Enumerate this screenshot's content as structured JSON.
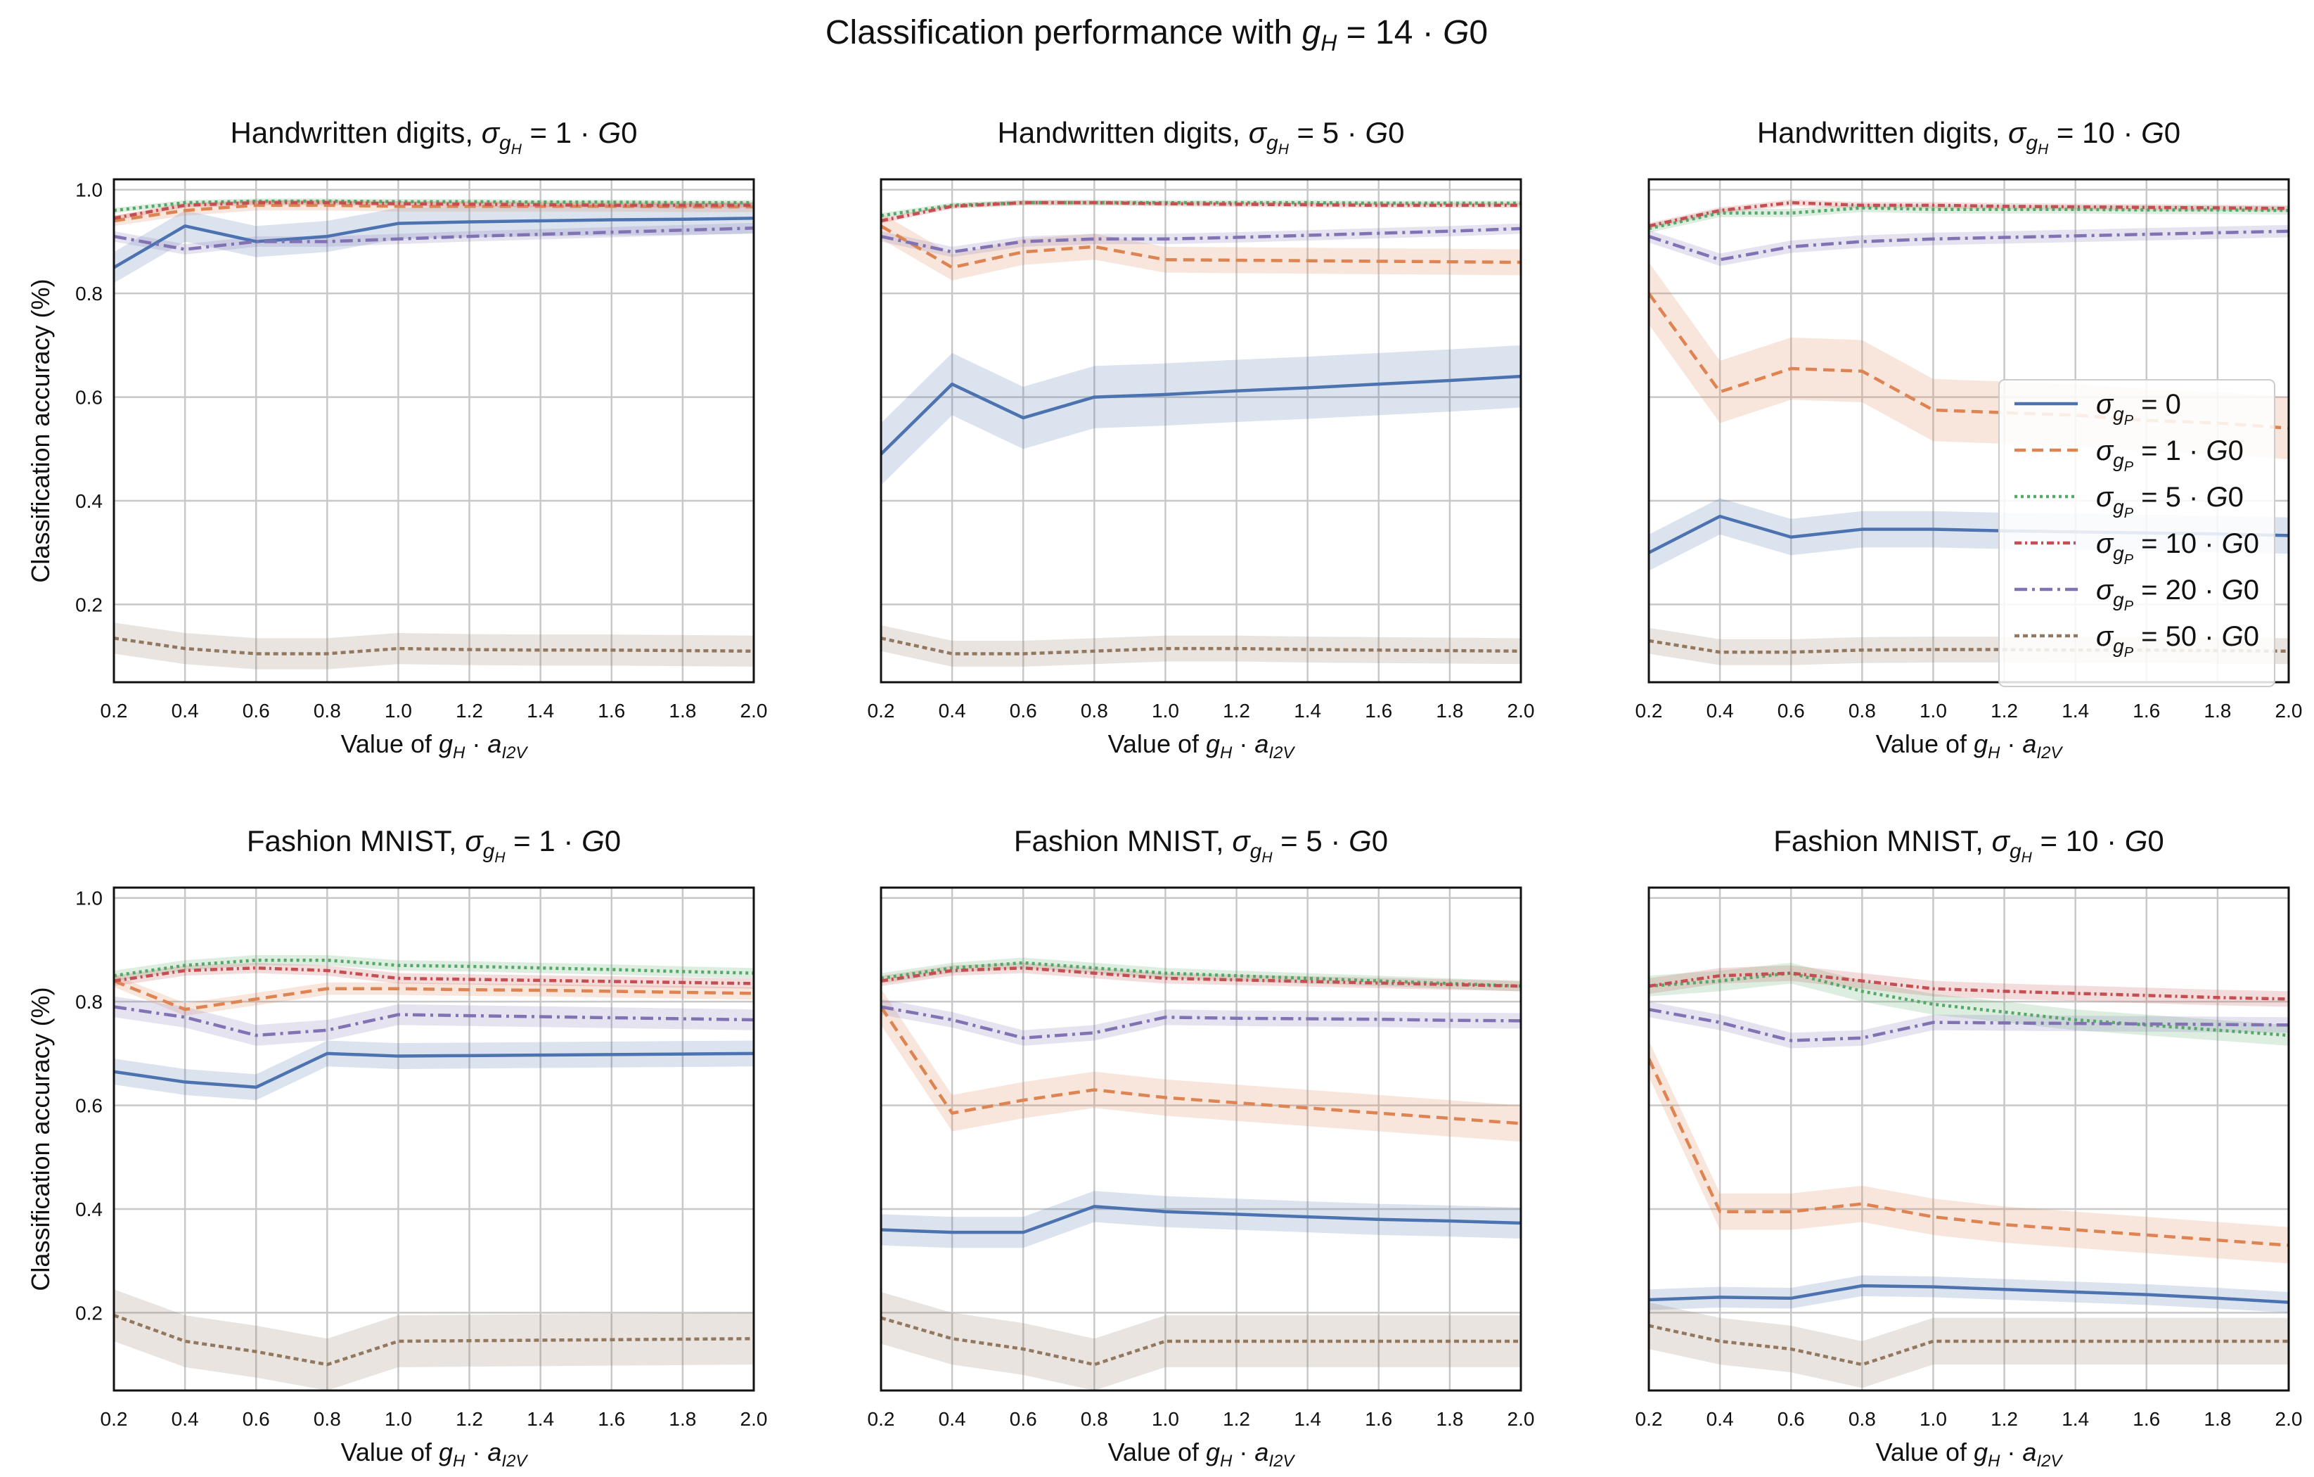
{
  "chart_data": {
    "type": "line",
    "suptitle": "Classification performance with g_H = 14 · G0",
    "xlabel": "Value of g_H · a_I2V",
    "ylabel": "Classification accuracy (%)",
    "x": [
      0.2,
      0.4,
      0.6,
      0.8,
      1.0,
      1.2,
      1.4,
      1.6,
      1.8,
      2.0
    ],
    "xticks": [
      "0.2",
      "0.4",
      "0.6",
      "0.8",
      "1.0",
      "1.2",
      "1.4",
      "1.6",
      "1.8",
      "2.0"
    ],
    "yticks": [
      "0.2",
      "0.4",
      "0.6",
      "0.8",
      "1.0"
    ],
    "ylim": [
      0.05,
      1.02
    ],
    "xlim": [
      0.2,
      2.0
    ],
    "grid": true,
    "legend": {
      "placement": "right of top-right panel",
      "entries": [
        "σ_gP = 0",
        "σ_gP = 1 · G0",
        "σ_gP = 5 · G0",
        "σ_gP = 10 · G0",
        "σ_gP = 20 · G0",
        "σ_gP = 50 · G0"
      ]
    },
    "series_styles": [
      {
        "name": "σ_gP = 0",
        "color": "#4c72b0",
        "dash": "solid"
      },
      {
        "name": "σ_gP = 1 · G0",
        "color": "#dd8452",
        "dash": "dashed"
      },
      {
        "name": "σ_gP = 5 · G0",
        "color": "#55a868",
        "dash": "dotted"
      },
      {
        "name": "σ_gP = 10 · G0",
        "color": "#c44e52",
        "dash": "dashdot-short"
      },
      {
        "name": "σ_gP = 20 · G0",
        "color": "#8172b3",
        "dash": "dashdot"
      },
      {
        "name": "σ_gP = 50 · G0",
        "color": "#937860",
        "dash": "dense-dash"
      }
    ],
    "panels": [
      {
        "title_main": "Handwritten digits,",
        "title_sigma": "1 · G0",
        "series": [
          {
            "name": "σ_gP = 0",
            "values": [
              0.85,
              0.93,
              0.9,
              0.91,
              0.935,
              0.938,
              0.94,
              0.942,
              0.943,
              0.945
            ],
            "band": 0.03
          },
          {
            "name": "σ_gP = 1 · G0",
            "values": [
              0.94,
              0.96,
              0.97,
              0.97,
              0.968,
              0.968,
              0.968,
              0.968,
              0.967,
              0.967
            ],
            "band": 0.01
          },
          {
            "name": "σ_gP = 5 · G0",
            "values": [
              0.96,
              0.975,
              0.978,
              0.978,
              0.977,
              0.977,
              0.976,
              0.976,
              0.975,
              0.975
            ],
            "band": 0.005
          },
          {
            "name": "σ_gP = 10 · G0",
            "values": [
              0.945,
              0.97,
              0.975,
              0.975,
              0.973,
              0.972,
              0.971,
              0.97,
              0.97,
              0.97
            ],
            "band": 0.005
          },
          {
            "name": "σ_gP = 20 · G0",
            "values": [
              0.91,
              0.885,
              0.9,
              0.9,
              0.905,
              0.91,
              0.914,
              0.918,
              0.922,
              0.926
            ],
            "band": 0.01
          },
          {
            "name": "σ_gP = 50 · G0",
            "values": [
              0.135,
              0.115,
              0.105,
              0.105,
              0.115,
              0.113,
              0.112,
              0.112,
              0.111,
              0.11
            ],
            "band": 0.03
          }
        ]
      },
      {
        "title_main": "Handwritten digits,",
        "title_sigma": "5 · G0",
        "series": [
          {
            "name": "σ_gP = 0",
            "values": [
              0.49,
              0.625,
              0.56,
              0.6,
              0.605,
              0.612,
              0.618,
              0.625,
              0.632,
              0.64
            ],
            "band": 0.06
          },
          {
            "name": "σ_gP = 1 · G0",
            "values": [
              0.93,
              0.85,
              0.88,
              0.89,
              0.865,
              0.864,
              0.863,
              0.862,
              0.861,
              0.86
            ],
            "band": 0.025
          },
          {
            "name": "σ_gP = 5 · G0",
            "values": [
              0.95,
              0.97,
              0.975,
              0.975,
              0.975,
              0.975,
              0.975,
              0.974,
              0.974,
              0.974
            ],
            "band": 0.005
          },
          {
            "name": "σ_gP = 10 · G0",
            "values": [
              0.94,
              0.968,
              0.975,
              0.975,
              0.973,
              0.972,
              0.971,
              0.97,
              0.97,
              0.97
            ],
            "band": 0.005
          },
          {
            "name": "σ_gP = 20 · G0",
            "values": [
              0.91,
              0.88,
              0.9,
              0.905,
              0.905,
              0.908,
              0.912,
              0.916,
              0.92,
              0.925
            ],
            "band": 0.01
          },
          {
            "name": "σ_gP = 50 · G0",
            "values": [
              0.135,
              0.105,
              0.105,
              0.11,
              0.115,
              0.115,
              0.113,
              0.112,
              0.111,
              0.11
            ],
            "band": 0.025
          }
        ]
      },
      {
        "title_main": "Handwritten digits,",
        "title_sigma": "10 · G0",
        "series": [
          {
            "name": "σ_gP = 0",
            "values": [
              0.3,
              0.37,
              0.33,
              0.345,
              0.345,
              0.342,
              0.34,
              0.338,
              0.336,
              0.333
            ],
            "band": 0.035
          },
          {
            "name": "σ_gP = 1 · G0",
            "values": [
              0.8,
              0.61,
              0.655,
              0.65,
              0.575,
              0.57,
              0.565,
              0.555,
              0.55,
              0.54
            ],
            "band": 0.06
          },
          {
            "name": "σ_gP = 5 · G0",
            "values": [
              0.925,
              0.955,
              0.955,
              0.965,
              0.962,
              0.962,
              0.962,
              0.961,
              0.961,
              0.96
            ],
            "band": 0.008
          },
          {
            "name": "σ_gP = 10 · G0",
            "values": [
              0.93,
              0.96,
              0.975,
              0.97,
              0.97,
              0.968,
              0.967,
              0.966,
              0.965,
              0.964
            ],
            "band": 0.006
          },
          {
            "name": "σ_gP = 20 · G0",
            "values": [
              0.91,
              0.865,
              0.89,
              0.9,
              0.905,
              0.908,
              0.911,
              0.914,
              0.917,
              0.92
            ],
            "band": 0.012
          },
          {
            "name": "σ_gP = 50 · G0",
            "values": [
              0.13,
              0.108,
              0.108,
              0.112,
              0.113,
              0.113,
              0.112,
              0.112,
              0.111,
              0.11
            ],
            "band": 0.025
          }
        ]
      },
      {
        "title_main": "Fashion MNIST,",
        "title_sigma": "1 · G0",
        "series": [
          {
            "name": "σ_gP = 0",
            "values": [
              0.665,
              0.645,
              0.635,
              0.7,
              0.695,
              0.696,
              0.697,
              0.698,
              0.699,
              0.7
            ],
            "band": 0.025
          },
          {
            "name": "σ_gP = 1 · G0",
            "values": [
              0.84,
              0.785,
              0.805,
              0.825,
              0.825,
              0.823,
              0.822,
              0.82,
              0.818,
              0.816
            ],
            "band": 0.012
          },
          {
            "name": "σ_gP = 5 · G0",
            "values": [
              0.85,
              0.87,
              0.88,
              0.88,
              0.87,
              0.868,
              0.865,
              0.862,
              0.858,
              0.855
            ],
            "band": 0.01
          },
          {
            "name": "σ_gP = 10 · G0",
            "values": [
              0.84,
              0.86,
              0.865,
              0.86,
              0.845,
              0.843,
              0.841,
              0.839,
              0.837,
              0.835
            ],
            "band": 0.01
          },
          {
            "name": "σ_gP = 20 · G0",
            "values": [
              0.79,
              0.77,
              0.735,
              0.745,
              0.775,
              0.773,
              0.771,
              0.769,
              0.767,
              0.765
            ],
            "band": 0.02
          },
          {
            "name": "σ_gP = 50 · G0",
            "values": [
              0.195,
              0.145,
              0.125,
              0.1,
              0.145,
              0.146,
              0.147,
              0.148,
              0.149,
              0.15
            ],
            "band": 0.05
          }
        ]
      },
      {
        "title_main": "Fashion MNIST,",
        "title_sigma": "5 · G0",
        "series": [
          {
            "name": "σ_gP = 0",
            "values": [
              0.36,
              0.355,
              0.355,
              0.405,
              0.395,
              0.39,
              0.385,
              0.38,
              0.377,
              0.373
            ],
            "band": 0.03
          },
          {
            "name": "σ_gP = 1 · G0",
            "values": [
              0.79,
              0.585,
              0.61,
              0.63,
              0.615,
              0.605,
              0.595,
              0.585,
              0.575,
              0.565
            ],
            "band": 0.035
          },
          {
            "name": "σ_gP = 5 · G0",
            "values": [
              0.845,
              0.865,
              0.875,
              0.865,
              0.855,
              0.85,
              0.845,
              0.84,
              0.835,
              0.83
            ],
            "band": 0.01
          },
          {
            "name": "σ_gP = 10 · G0",
            "values": [
              0.84,
              0.86,
              0.865,
              0.855,
              0.845,
              0.842,
              0.839,
              0.836,
              0.833,
              0.83
            ],
            "band": 0.01
          },
          {
            "name": "σ_gP = 20 · G0",
            "values": [
              0.79,
              0.765,
              0.73,
              0.74,
              0.77,
              0.768,
              0.767,
              0.766,
              0.764,
              0.763
            ],
            "band": 0.015
          },
          {
            "name": "σ_gP = 50 · G0",
            "values": [
              0.19,
              0.15,
              0.13,
              0.1,
              0.145,
              0.145,
              0.145,
              0.145,
              0.145,
              0.145
            ],
            "band": 0.05
          }
        ]
      },
      {
        "title_main": "Fashion MNIST,",
        "title_sigma": "10 · G0",
        "series": [
          {
            "name": "σ_gP = 0",
            "values": [
              0.225,
              0.23,
              0.228,
              0.252,
              0.25,
              0.245,
              0.24,
              0.235,
              0.228,
              0.22
            ],
            "band": 0.02
          },
          {
            "name": "σ_gP = 1 · G0",
            "values": [
              0.69,
              0.395,
              0.395,
              0.41,
              0.385,
              0.37,
              0.36,
              0.35,
              0.34,
              0.33
            ],
            "band": 0.035
          },
          {
            "name": "σ_gP = 5 · G0",
            "values": [
              0.83,
              0.84,
              0.855,
              0.82,
              0.795,
              0.78,
              0.765,
              0.755,
              0.745,
              0.735
            ],
            "band": 0.02
          },
          {
            "name": "σ_gP = 10 · G0",
            "values": [
              0.83,
              0.85,
              0.855,
              0.84,
              0.825,
              0.82,
              0.816,
              0.812,
              0.808,
              0.805
            ],
            "band": 0.015
          },
          {
            "name": "σ_gP = 20 · G0",
            "values": [
              0.785,
              0.76,
              0.725,
              0.73,
              0.76,
              0.759,
              0.758,
              0.757,
              0.756,
              0.755
            ],
            "band": 0.015
          },
          {
            "name": "σ_gP = 50 · G0",
            "values": [
              0.175,
              0.145,
              0.13,
              0.1,
              0.145,
              0.145,
              0.145,
              0.145,
              0.145,
              0.145
            ],
            "band": 0.045
          }
        ]
      }
    ]
  }
}
